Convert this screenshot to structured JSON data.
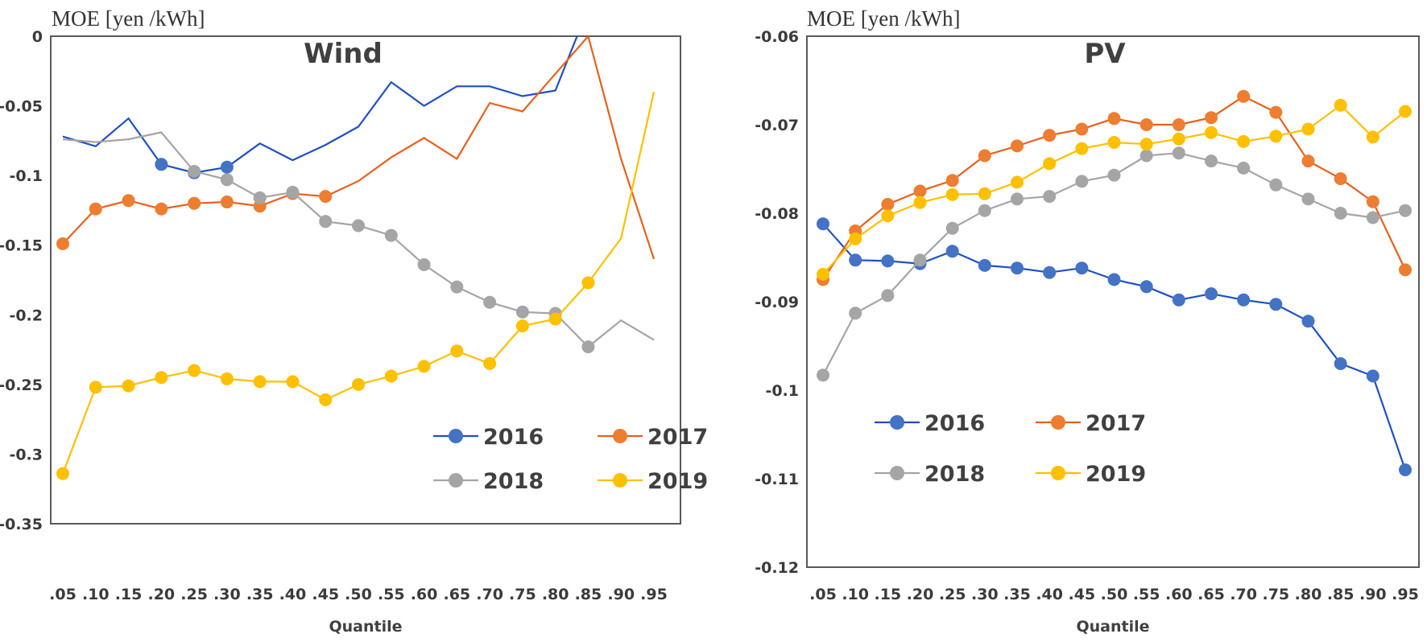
{
  "colors": {
    "2016": "#4472C4",
    "2017": "#ED7D31",
    "2018": "#A5A5A5",
    "2019": "#FFC000",
    "line2016": "#1F4FC4",
    "line2017": "#E8601C"
  },
  "chart_data": [
    {
      "type": "line",
      "title": "Wind",
      "ylabel": "MOE [yen /kWh]",
      "xlabel": "Quantile",
      "ylim": [
        -0.35,
        0
      ],
      "yticks": [
        0,
        -0.05,
        -0.1,
        -0.15,
        -0.2,
        -0.25,
        -0.3,
        -0.35
      ],
      "ytick_labels": [
        "0",
        "-0.05",
        "-0.1",
        "-0.15",
        "-0.2",
        "-0.25",
        "-0.3",
        "-0.35"
      ],
      "categories": [
        ".05",
        ".10",
        ".15",
        ".20",
        ".25",
        ".30",
        ".35",
        ".40",
        ".45",
        ".50",
        ".55",
        ".60",
        ".65",
        ".70",
        ".75",
        ".80",
        ".85",
        ".90",
        ".95"
      ],
      "legend": "center-right, 2 columns",
      "series": [
        {
          "name": "2016",
          "values": [
            -0.072,
            -0.079,
            -0.059,
            -0.092,
            -0.098,
            -0.094,
            -0.077,
            -0.089,
            -0.078,
            -0.065,
            -0.033,
            -0.05,
            -0.036,
            -0.036,
            -0.043,
            -0.039,
            0.02,
            null,
            null
          ],
          "markers": [
            3,
            4,
            5
          ]
        },
        {
          "name": "2017",
          "values": [
            -0.149,
            -0.124,
            -0.118,
            -0.124,
            -0.12,
            -0.119,
            -0.122,
            -0.113,
            -0.115,
            -0.104,
            -0.087,
            -0.073,
            -0.088,
            -0.048,
            -0.054,
            -0.027,
            0.0,
            -0.088,
            -0.16
          ],
          "markers": [
            0,
            1,
            2,
            3,
            4,
            5,
            6,
            7,
            8
          ]
        },
        {
          "name": "2018",
          "values": [
            -0.074,
            -0.076,
            -0.074,
            -0.069,
            -0.097,
            -0.103,
            -0.116,
            -0.112,
            -0.133,
            -0.136,
            -0.143,
            -0.164,
            -0.18,
            -0.191,
            -0.198,
            -0.199,
            -0.223,
            -0.204,
            -0.218
          ],
          "markers": [
            4,
            5,
            6,
            7,
            8,
            9,
            10,
            11,
            12,
            13,
            14,
            15,
            16
          ]
        },
        {
          "name": "2019",
          "values": [
            -0.314,
            -0.252,
            -0.251,
            -0.245,
            -0.24,
            -0.246,
            -0.248,
            -0.248,
            -0.261,
            -0.25,
            -0.244,
            -0.237,
            -0.226,
            -0.235,
            -0.208,
            -0.203,
            -0.177,
            -0.145,
            -0.04
          ],
          "markers": [
            0,
            1,
            2,
            3,
            4,
            5,
            6,
            7,
            8,
            9,
            10,
            11,
            12,
            13,
            14,
            15,
            16
          ]
        }
      ]
    },
    {
      "type": "line",
      "title": "PV",
      "ylabel": "MOE [yen /kWh]",
      "xlabel": "Quantile",
      "ylim": [
        -0.12,
        -0.06
      ],
      "yticks": [
        -0.06,
        -0.07,
        -0.08,
        -0.09,
        -0.1,
        -0.11,
        -0.12
      ],
      "ytick_labels": [
        "-0.06",
        "-0.07",
        "-0.08",
        "-0.09",
        "-0.1",
        "-0.11",
        "-0.12"
      ],
      "categories": [
        ".05",
        ".10",
        ".15",
        ".20",
        ".25",
        ".30",
        ".35",
        ".40",
        ".45",
        ".50",
        ".55",
        ".60",
        ".65",
        ".70",
        ".75",
        ".80",
        ".85",
        ".90",
        ".95"
      ],
      "legend": "bottom-left, 2 columns",
      "series": [
        {
          "name": "2016",
          "values": [
            -0.0812,
            -0.0853,
            -0.0854,
            -0.0857,
            -0.0843,
            -0.0859,
            -0.0862,
            -0.0867,
            -0.0862,
            -0.0875,
            -0.0883,
            -0.0898,
            -0.0891,
            -0.0898,
            -0.0903,
            -0.0922,
            -0.097,
            -0.0984,
            -0.109
          ],
          "markers": "all"
        },
        {
          "name": "2017",
          "values": [
            -0.0875,
            -0.082,
            -0.079,
            -0.0775,
            -0.0763,
            -0.0735,
            -0.0724,
            -0.0712,
            -0.0705,
            -0.0693,
            -0.07,
            -0.07,
            -0.0692,
            -0.0668,
            -0.0686,
            -0.0741,
            -0.0761,
            -0.0787,
            -0.0864
          ],
          "markers": "all"
        },
        {
          "name": "2018",
          "values": [
            -0.0983,
            -0.0913,
            -0.0893,
            -0.0853,
            -0.0817,
            -0.0797,
            -0.0784,
            -0.0781,
            -0.0764,
            -0.0757,
            -0.0735,
            -0.0732,
            -0.0741,
            -0.0749,
            -0.0768,
            -0.0784,
            -0.08,
            -0.0805,
            -0.0797
          ],
          "markers": "all"
        },
        {
          "name": "2019",
          "values": [
            -0.0869,
            -0.0829,
            -0.0803,
            -0.0788,
            -0.0779,
            -0.0778,
            -0.0765,
            -0.0744,
            -0.0727,
            -0.072,
            -0.0722,
            -0.0716,
            -0.0709,
            -0.0719,
            -0.0713,
            -0.0705,
            -0.0678,
            -0.0714,
            -0.0685
          ],
          "markers": "all"
        }
      ]
    }
  ]
}
